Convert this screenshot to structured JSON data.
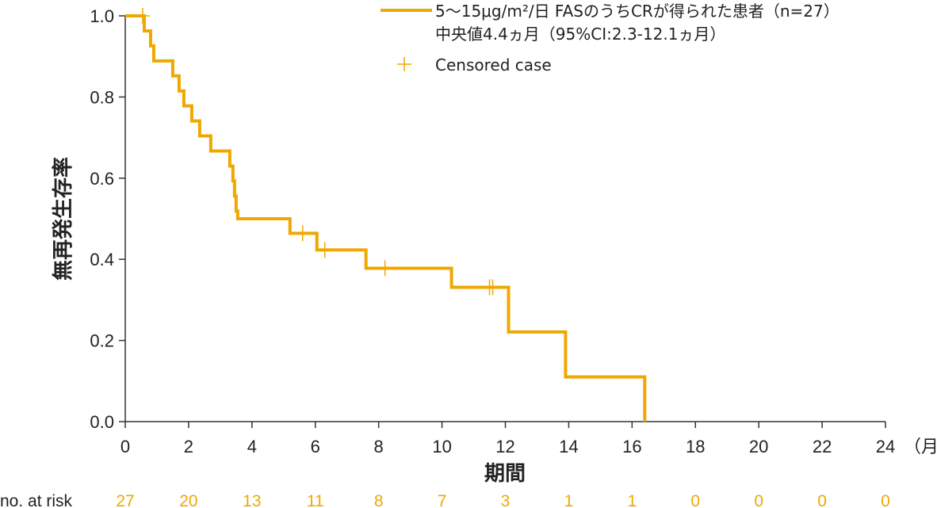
{
  "chart_data": {
    "type": "line",
    "step": true,
    "ylabel": "無再発生存率",
    "xlabel": "期間",
    "x_unit": "（月）",
    "xlim": [
      0,
      24
    ],
    "ylim": [
      0,
      1
    ],
    "x_ticks": [
      "0",
      "2",
      "4",
      "6",
      "8",
      "10",
      "12",
      "14",
      "16",
      "18",
      "20",
      "22",
      "24"
    ],
    "y_ticks": [
      "0.0",
      "0.2",
      "0.4",
      "0.6",
      "0.8",
      "1.0"
    ],
    "grid": false,
    "legend_position": "top-right",
    "series": [
      {
        "name": "5〜15μg/m²/日 FASのうちCRが得られた患者（n=27）",
        "subtitle": "中央値4.4ヵ月（95%CI:2.3-12.1ヵ月）",
        "color": "#F0A800",
        "steps": [
          [
            0,
            1.0
          ],
          [
            0.6,
            0.963
          ],
          [
            0.8,
            0.926
          ],
          [
            0.9,
            0.889
          ],
          [
            1.5,
            0.852
          ],
          [
            1.7,
            0.815
          ],
          [
            1.85,
            0.778
          ],
          [
            2.1,
            0.741
          ],
          [
            2.35,
            0.704
          ],
          [
            2.7,
            0.667
          ],
          [
            3.3,
            0.63
          ],
          [
            3.4,
            0.593
          ],
          [
            3.45,
            0.556
          ],
          [
            3.5,
            0.519
          ],
          [
            3.55,
            0.5
          ],
          [
            5.2,
            0.464
          ],
          [
            6.05,
            0.423
          ],
          [
            7.6,
            0.378
          ],
          [
            10.3,
            0.331
          ],
          [
            12.1,
            0.221
          ],
          [
            13.9,
            0.11
          ],
          [
            16.4,
            0.0
          ]
        ],
        "censored": [
          [
            0.55,
            1.0
          ],
          [
            5.6,
            0.464
          ],
          [
            6.3,
            0.423
          ],
          [
            8.2,
            0.378
          ],
          [
            11.5,
            0.331
          ],
          [
            11.6,
            0.331
          ]
        ]
      }
    ],
    "legend_censored_label": "Censored case",
    "risk_table": {
      "label": "no. at risk",
      "times": [
        0,
        2,
        4,
        6,
        8,
        10,
        12,
        14,
        16,
        18,
        20,
        22,
        24
      ],
      "counts": [
        "27",
        "20",
        "13",
        "11",
        "8",
        "7",
        "3",
        "1",
        "1",
        "0",
        "0",
        "0",
        "0"
      ]
    }
  }
}
